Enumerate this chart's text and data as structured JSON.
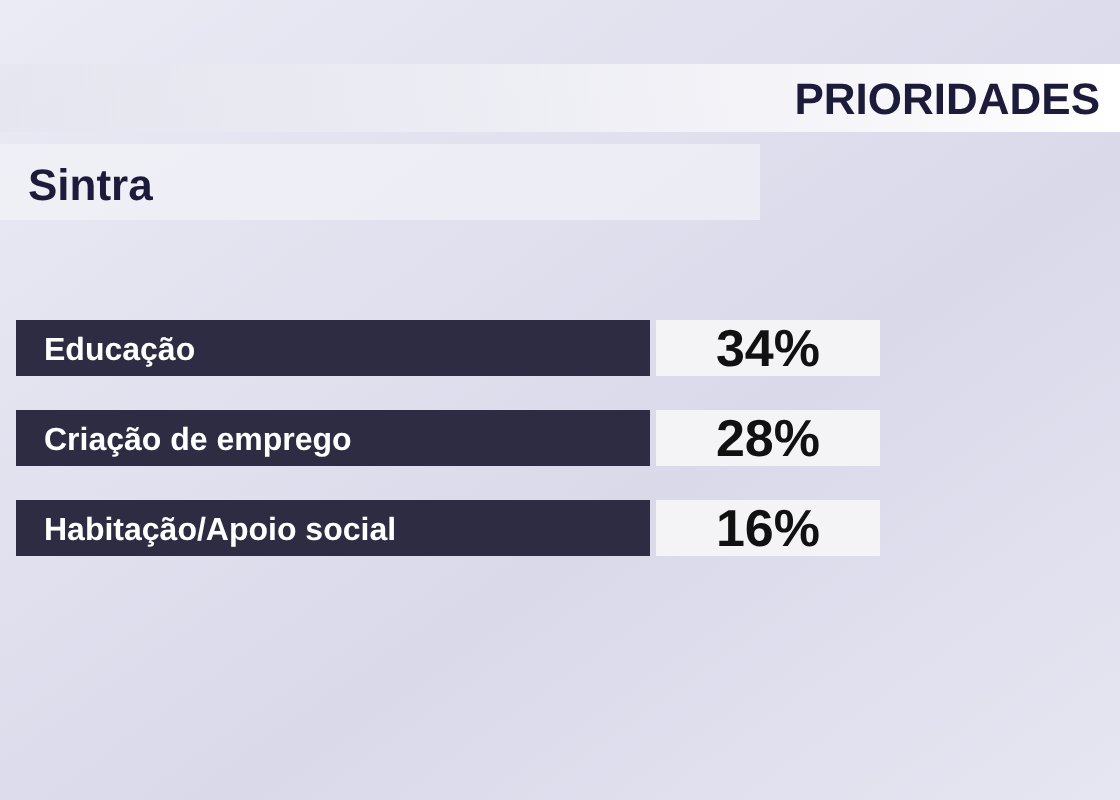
{
  "chart_data": {
    "type": "other",
    "title": "PRIORIDADES",
    "subtitle": "Sintra",
    "categories": [
      "Educação",
      "Criação de emprego",
      "Habitação/Apoio social"
    ],
    "values": [
      34,
      28,
      16
    ],
    "value_labels": [
      "34%",
      "28%",
      "16%"
    ]
  }
}
